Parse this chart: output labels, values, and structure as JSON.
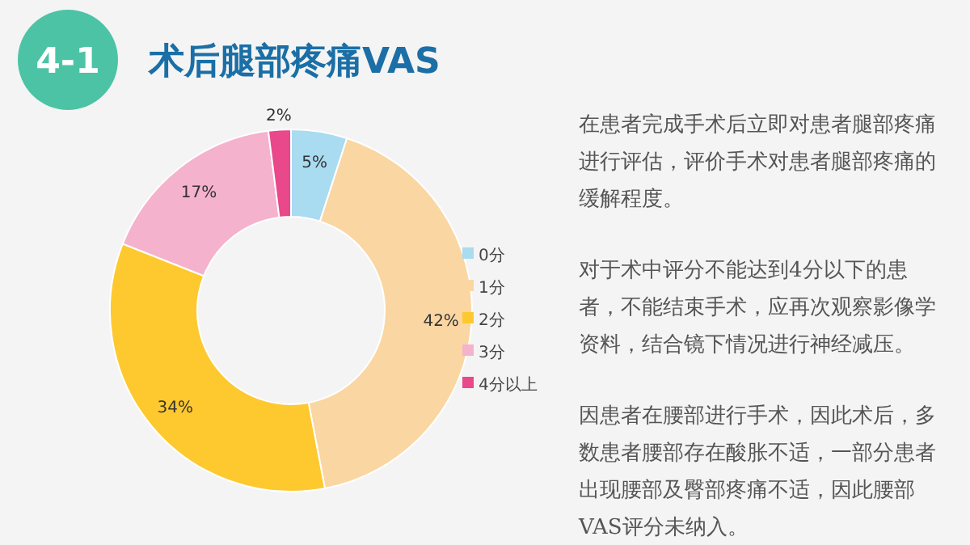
{
  "chart_data": {
    "type": "donut",
    "title": "术后腿部疼痛VAS",
    "categories": [
      "0分",
      "1分",
      "2分",
      "3分",
      "4分以上"
    ],
    "values": [
      5,
      42,
      34,
      17,
      2
    ],
    "value_labels": [
      "5%",
      "42%",
      "34%",
      "17%",
      "2%"
    ],
    "colors": [
      "#a9dbf1",
      "#fad6a2",
      "#fec92e",
      "#f5b2cc",
      "#e9488b"
    ],
    "legend": "right",
    "annotations": [
      "4-1",
      "在患者完成手术后立即对患者腿部疼痛进行评估，评价手术对患者腿部疼痛的缓解程度。",
      "对于术中评分不能达到4分以下的患者，不能结束手术，应再次观察影像学资料，结合镜下情况进行神经减压。",
      "因患者在腰部进行手术，因此术后，多数患者腰部存在酸胀不适，一部分患者出现腰部及臀部疼痛不适，因此腰部VAS评分未纳入。"
    ]
  }
}
